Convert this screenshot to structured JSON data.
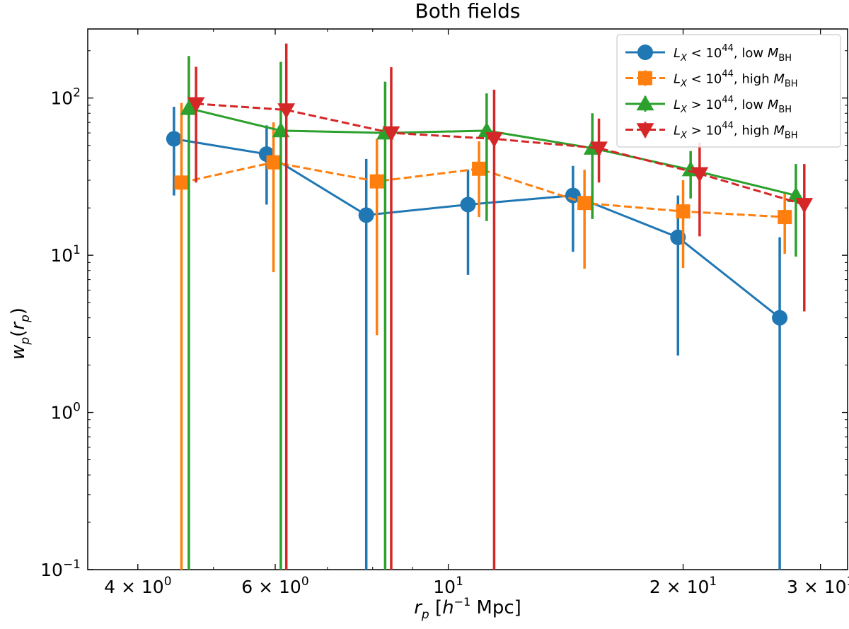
{
  "chart_data": {
    "type": "line",
    "title": "Both fields",
    "xlabel": "r_p [h^-1 Mpc]",
    "ylabel": "w_p(r_p)",
    "xscale": "log",
    "yscale": "log",
    "xlim": [
      3.45,
      32.5
    ],
    "ylim": [
      0.1,
      275
    ],
    "grid": false,
    "legend_position": "top-right",
    "x_ticks": [
      {
        "value": 4,
        "mant": "4",
        "base": "10",
        "exp": "0"
      },
      {
        "value": 6,
        "mant": "6",
        "base": "10",
        "exp": "0"
      },
      {
        "value": 10,
        "mant": "",
        "base": "10",
        "exp": "1"
      },
      {
        "value": 20,
        "mant": "2",
        "base": "10",
        "exp": "1"
      },
      {
        "value": 30,
        "mant": "3",
        "base": "10",
        "exp": "1"
      }
    ],
    "y_ticks": [
      {
        "value": 0.1,
        "base": "10",
        "exp": "−1"
      },
      {
        "value": 1,
        "base": "10",
        "exp": "0"
      },
      {
        "value": 10,
        "base": "10",
        "exp": "1"
      },
      {
        "value": 100,
        "base": "10",
        "exp": "2"
      }
    ],
    "series": [
      {
        "label": {
          "pre": "L",
          "sub": "X",
          "op": " < 10",
          "exp": "44",
          "mid": ", low ",
          "mvar": "M",
          "msub": "BH"
        },
        "color": "#1f77b4",
        "marker": "circle",
        "linestyle": "solid",
        "x": [
          4.45,
          5.85,
          7.85,
          10.6,
          14.45,
          19.7,
          26.6
        ],
        "y": [
          55,
          44,
          18,
          21,
          24,
          13,
          4
        ],
        "yerr_low": [
          24,
          21,
          0.1,
          7.5,
          10.5,
          2.3,
          0.1
        ],
        "yerr_high": [
          88,
          67,
          41,
          35,
          37,
          24,
          13
        ]
      },
      {
        "label": {
          "pre": "L",
          "sub": "X",
          "op": " < 10",
          "exp": "44",
          "mid": ", high ",
          "mvar": "M",
          "msub": "BH"
        },
        "color": "#ff7f0e",
        "marker": "square",
        "linestyle": "dashed",
        "x": [
          4.55,
          5.97,
          8.1,
          10.95,
          14.95,
          20.0,
          27.0
        ],
        "y": [
          29,
          39,
          29.5,
          35.5,
          21.5,
          19,
          17.5
        ],
        "yerr_low": [
          0.1,
          7.8,
          3.1,
          17.5,
          8.2,
          8.3,
          10.2
        ],
        "yerr_high": [
          93,
          70,
          55,
          53,
          35,
          30,
          25
        ]
      },
      {
        "label": {
          "pre": "L",
          "sub": "X",
          "op": " > 10",
          "exp": "44",
          "mid": ", low ",
          "mvar": "M",
          "msub": "BH"
        },
        "color": "#2ca02c",
        "marker": "triangle-up",
        "linestyle": "solid",
        "x": [
          4.65,
          6.1,
          8.3,
          11.2,
          15.3,
          20.45,
          27.9
        ],
        "y": [
          86,
          62,
          60,
          62,
          48,
          35,
          24
        ],
        "yerr_low": [
          0.1,
          0.1,
          0.1,
          16.5,
          17,
          23,
          9.8
        ],
        "yerr_high": [
          185,
          170,
          127,
          107,
          80,
          46,
          38
        ]
      },
      {
        "label": {
          "pre": "L",
          "sub": "X",
          "op": " > 10",
          "exp": "44",
          "mid": ", high ",
          "mvar": "M",
          "msub": "BH"
        },
        "color": "#d62728",
        "marker": "triangle-down",
        "linestyle": "dashed",
        "x": [
          4.75,
          6.2,
          8.45,
          11.45,
          15.6,
          21.0,
          28.6
        ],
        "y": [
          92,
          84,
          60,
          55,
          48,
          33,
          21
        ],
        "yerr_low": [
          29,
          0.1,
          0.1,
          0.1,
          29,
          13.2,
          4.4
        ],
        "yerr_high": [
          158,
          222,
          157,
          113,
          74,
          52,
          38
        ]
      }
    ]
  }
}
